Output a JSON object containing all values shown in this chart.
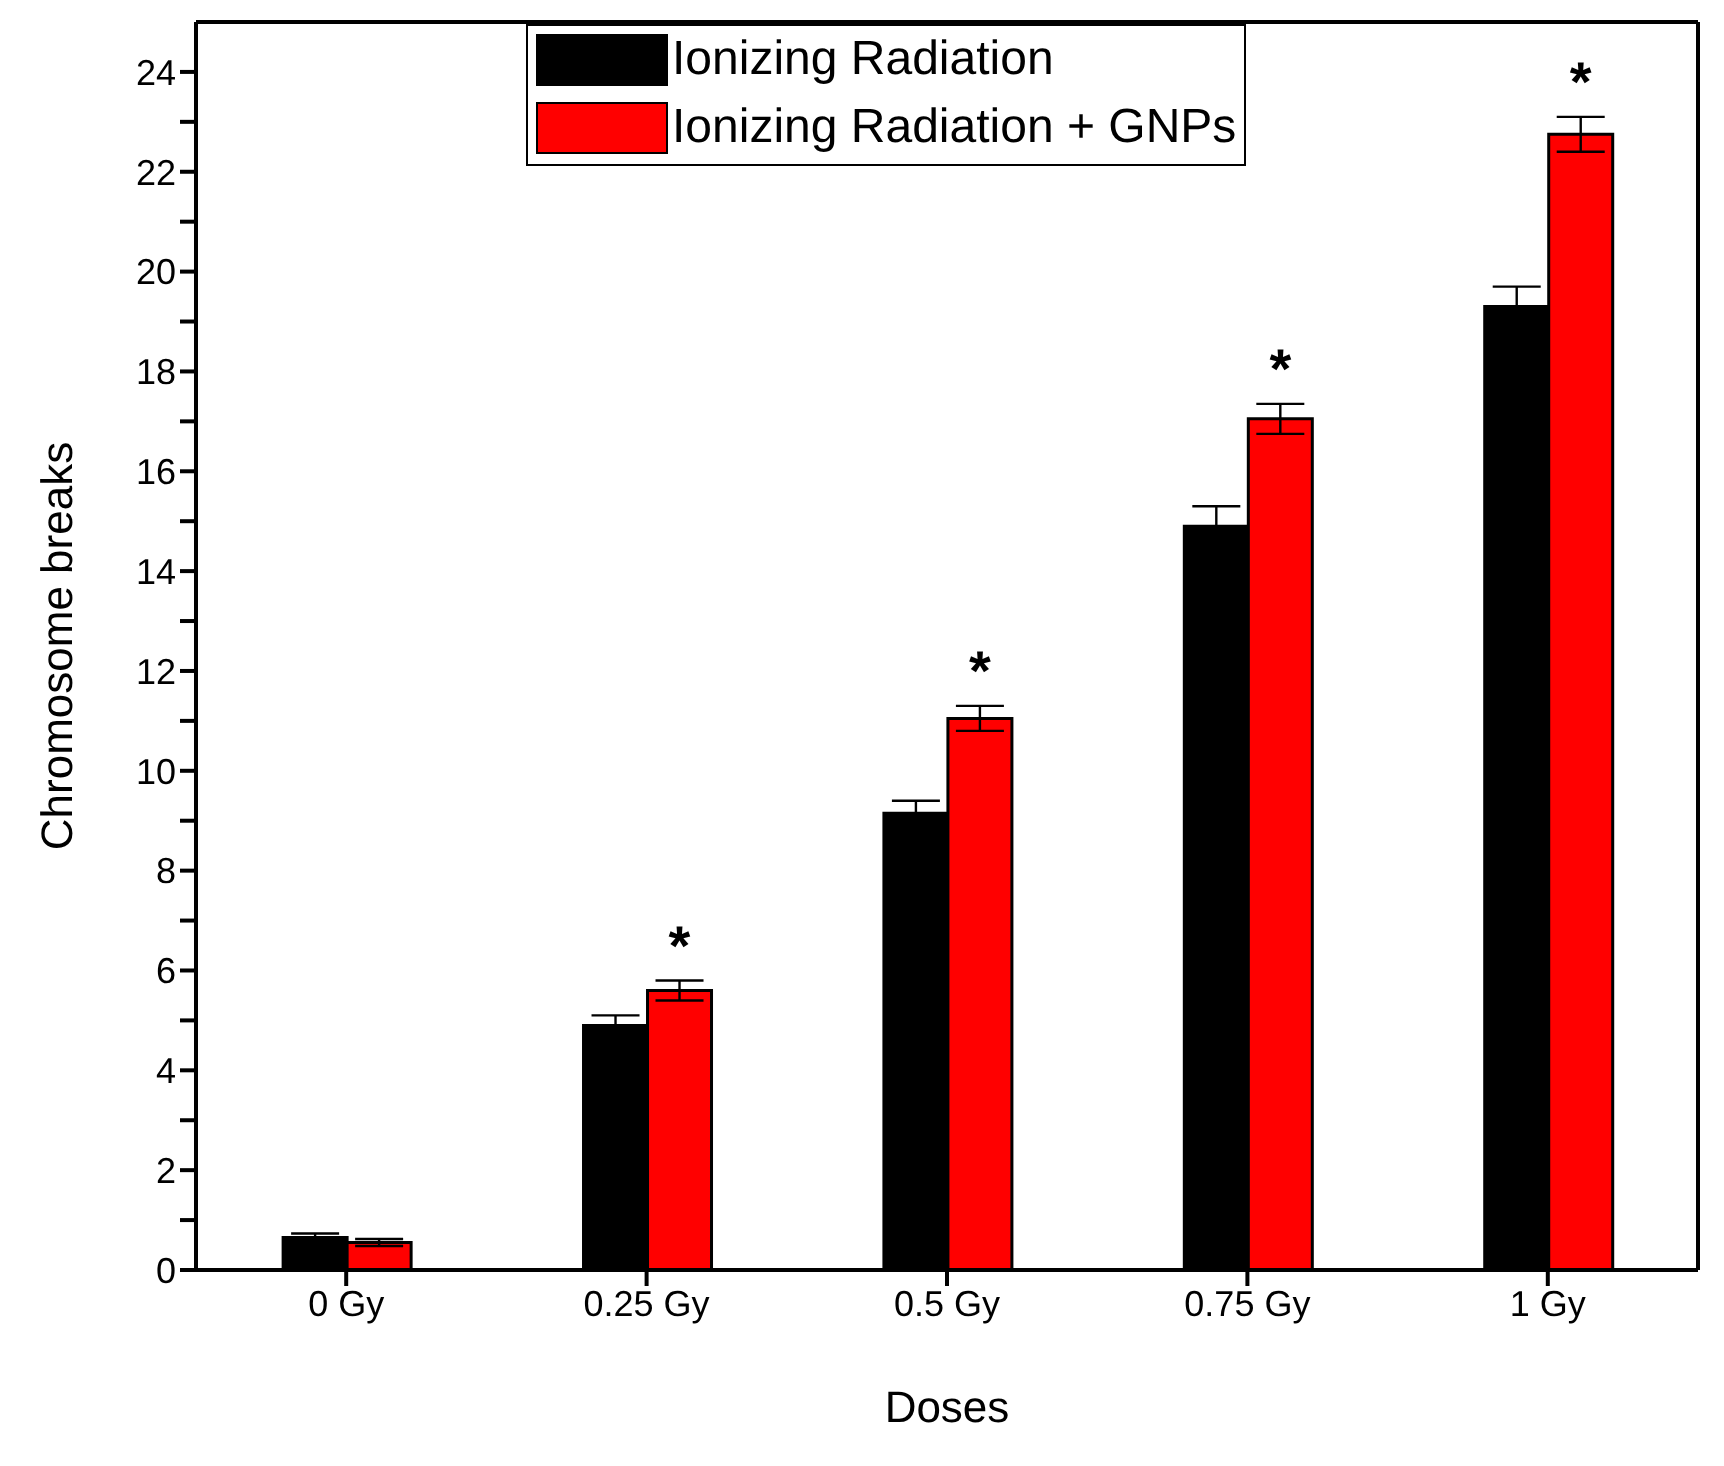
{
  "chart_data": {
    "type": "bar",
    "xlabel": "Doses",
    "ylabel": "Chromosome breaks",
    "categories": [
      "0 Gy",
      "0.25 Gy",
      "0.5 Gy",
      "0.75 Gy",
      "1 Gy"
    ],
    "series": [
      {
        "name": "Ionizing Radiation",
        "color": "#000000",
        "values": [
          0.65,
          4.9,
          9.15,
          14.9,
          19.3
        ],
        "errors": [
          0.08,
          0.2,
          0.25,
          0.4,
          0.4
        ]
      },
      {
        "name": "Ionizing Radiation + GNPs",
        "color": "#ff0000",
        "values": [
          0.55,
          5.6,
          11.05,
          17.05,
          22.75
        ],
        "errors": [
          0.07,
          0.2,
          0.25,
          0.3,
          0.35
        ],
        "value_labels": [
          null,
          "*",
          "*",
          "*",
          "*"
        ]
      }
    ],
    "ylim": [
      0,
      25
    ],
    "yticks": [
      0,
      {
        "value": 1,
        "label": null
      },
      2,
      {
        "value": 3,
        "label": null
      },
      4,
      {
        "value": 5,
        "label": null
      },
      6,
      {
        "value": 7,
        "label": null
      },
      8,
      {
        "value": 9,
        "label": null
      },
      10,
      {
        "value": 11,
        "label": null
      },
      12,
      {
        "value": 13,
        "label": null
      },
      14,
      {
        "value": 15,
        "label": null
      },
      16,
      {
        "value": 17,
        "label": null
      },
      18,
      {
        "value": 19,
        "label": null
      },
      20,
      {
        "value": 21,
        "label": null
      },
      22,
      {
        "value": 23,
        "label": null
      },
      24
    ],
    "legend": "top",
    "grid": false
  }
}
